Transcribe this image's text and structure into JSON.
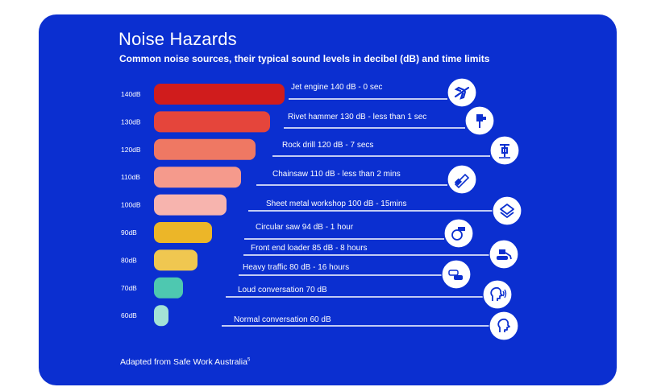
{
  "title": "Noise Hazards",
  "subtitle": "Common noise sources, their typical sound levels in decibel (dB) and time limits",
  "footer": "Adapted from Safe Work Australia",
  "footer_sup": "5",
  "background_color": "#0b2fd0",
  "chart_data": {
    "type": "bar",
    "orientation": "horizontal",
    "title": "Noise Hazards",
    "subtitle": "Common noise sources, their typical sound levels in decibel (dB) and time limits",
    "categories": [
      "140dB",
      "130dB",
      "120dB",
      "110dB",
      "100dB",
      "90dB",
      "80dB",
      "70dB",
      "60dB"
    ],
    "values": [
      140,
      130,
      120,
      110,
      100,
      90,
      80,
      70,
      60
    ],
    "bar_colors": [
      "#d01c1c",
      "#e5453b",
      "#ef7863",
      "#f59a8c",
      "#f7b4ae",
      "#ecb628",
      "#f0c750",
      "#4ec8b0",
      "#a3e3d6"
    ],
    "sources": [
      {
        "db": 140,
        "label": "Jet engine 140 dB - 0 sec",
        "icon": "airplane-icon"
      },
      {
        "db": 130,
        "label": "Rivet hammer 130 dB - less than 1 sec",
        "icon": "rivet-hammer-icon"
      },
      {
        "db": 120,
        "label": "Rock drill 120 dB - 7 secs",
        "icon": "rock-drill-icon"
      },
      {
        "db": 110,
        "label": "Chainsaw 110 dB - less than 2 mins",
        "icon": "chainsaw-icon"
      },
      {
        "db": 100,
        "label": "Sheet metal workshop 100 dB - 15mins",
        "icon": "sheet-metal-icon"
      },
      {
        "db": 94,
        "label": "Circular saw 94 dB - 1 hour",
        "icon": "circular-saw-icon"
      },
      {
        "db": 85,
        "label": "Front end loader 85 dB - 8 hours",
        "icon": "front-end-loader-icon"
      },
      {
        "db": 80,
        "label": "Heavy traffic 80 dB - 16 hours",
        "icon": "traffic-icon"
      },
      {
        "db": 70,
        "label": "Loud conversation 70 dB",
        "icon": "loud-talk-icon"
      },
      {
        "db": 60,
        "label": "Normal conversation 60 dB",
        "icon": "talk-icon"
      }
    ]
  }
}
